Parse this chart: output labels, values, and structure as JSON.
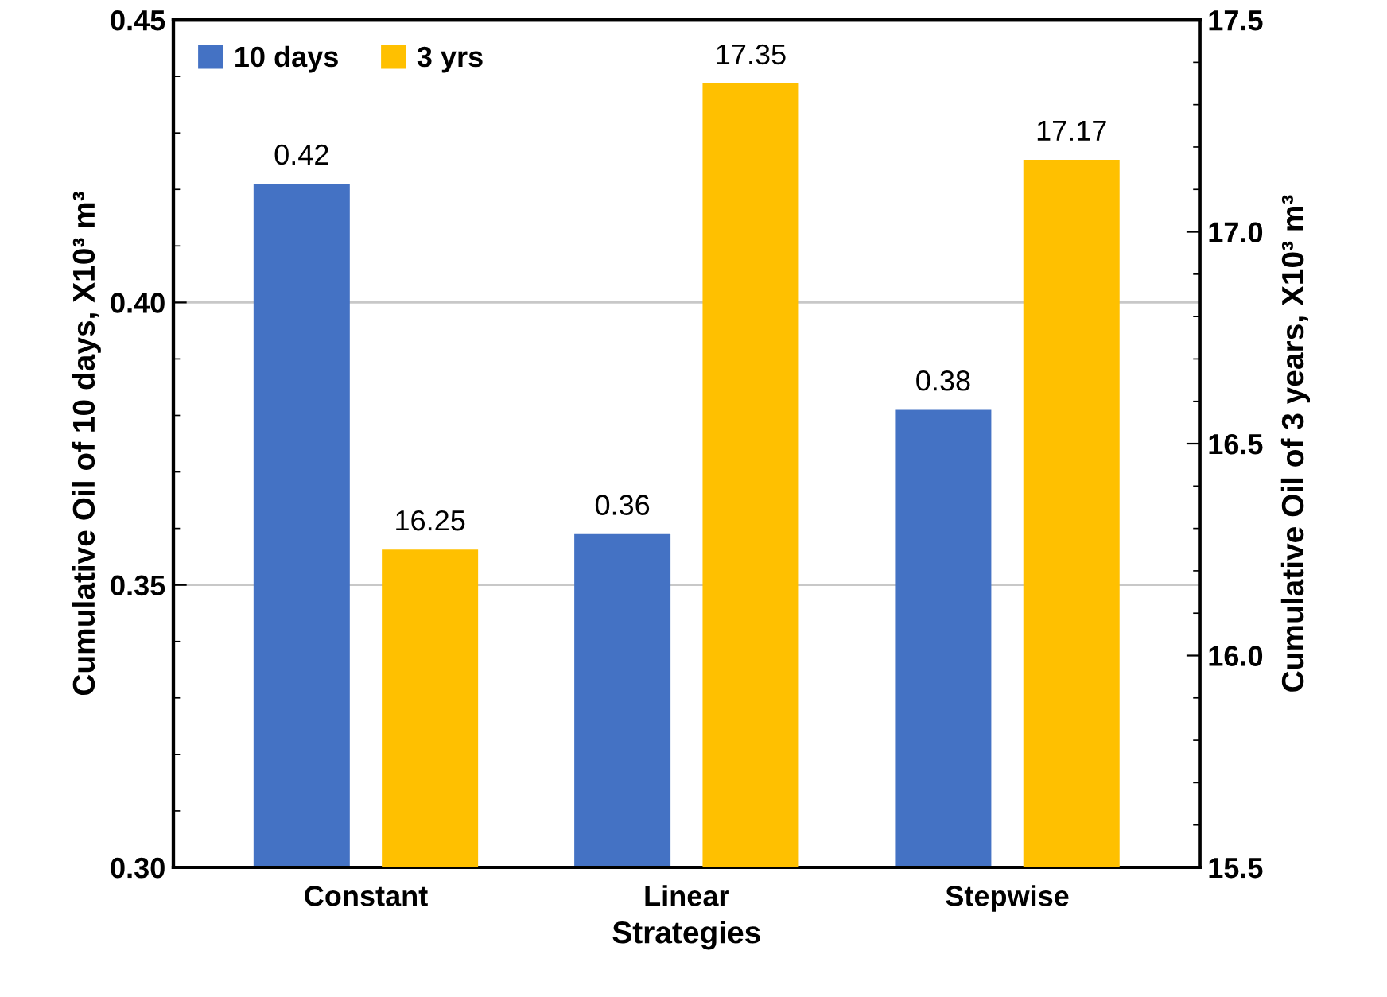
{
  "chart_data": {
    "type": "bar",
    "categories": [
      "Constant",
      "Linear",
      "Stepwise"
    ],
    "xlabel": "Strategies",
    "ylabel": "Cumulative Oil of 10 days, X10³ m³",
    "y2label": "Cumulative Oil of 3 years, X10³ m³",
    "series": [
      {
        "name": "10 days",
        "color": "#4472c4",
        "values": [
          0.421,
          0.359,
          0.381
        ],
        "value_labels": [
          "0.42",
          "0.36",
          "0.38"
        ]
      },
      {
        "name": "3 yrs",
        "color": "#ffc000",
        "axis": "y2",
        "values": [
          16.25,
          17.35,
          17.17
        ],
        "value_labels": [
          "16.25",
          "17.35",
          "17.17"
        ]
      }
    ],
    "ylim": [
      0.3,
      0.45
    ],
    "yticks": [
      {
        "value": 0.3,
        "label": "0.30"
      },
      {
        "value": 0.35,
        "label": "0.35"
      },
      {
        "value": 0.4,
        "label": "0.40"
      },
      {
        "value": 0.45,
        "label": "0.45"
      }
    ],
    "y2lim": [
      15.5,
      17.5
    ],
    "y2ticks": [
      15.5,
      {
        "value": 16.0,
        "label": "16.0"
      },
      16.5,
      {
        "value": 17.0,
        "label": "17.0"
      },
      17.5
    ],
    "grid": "y",
    "legend": "top left"
  }
}
